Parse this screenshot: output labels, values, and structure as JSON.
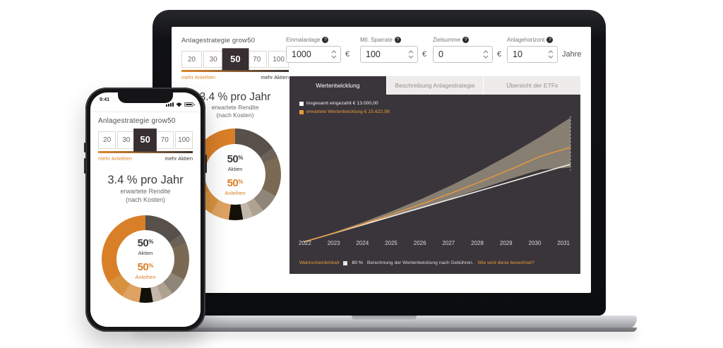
{
  "colors": {
    "accent": "#E0872F",
    "accent_light": "#E89A3C",
    "dark_panel": "#3A353B",
    "band": "#8B8276"
  },
  "strategy": {
    "title": "Anlagestrategie grow50",
    "options": [
      "20",
      "30",
      "50",
      "70",
      "100"
    ],
    "selected": "50",
    "left_label": "mehr Anleihen",
    "right_label": "mehr Aktien",
    "rate": "3.4 % pro Jahr",
    "rate_sub1": "erwartete Rendite",
    "rate_sub2": "(nach Kosten)"
  },
  "phone": {
    "status_time": "9:41"
  },
  "inputs": [
    {
      "label": "Einmalanlage",
      "help": "?",
      "value": "1000",
      "unit": "€"
    },
    {
      "label": "Mtl. Sparrate",
      "help": "?",
      "value": "100",
      "unit": "€"
    },
    {
      "label": "Zielsumme",
      "help": "?",
      "value": "0",
      "unit": "€"
    },
    {
      "label": "Anlagehorizont",
      "help": "?",
      "value": "10",
      "unit": "Jahre"
    }
  ],
  "tabs": [
    {
      "label": "Wertentwicklung",
      "active": true
    },
    {
      "label": "Beschreibung Anlagestrategie",
      "active": false
    },
    {
      "label": "Übersicht der ETFs",
      "active": false
    }
  ],
  "legend": [
    {
      "label": "insgesamt eingezahlt € 13.000,00",
      "color": "#FFFFFF"
    },
    {
      "label": "erwartete Wertentwicklung € 15.622,98",
      "color": "#E89A3C"
    }
  ],
  "footer": {
    "probability_label": "Wahrscheinlichkeit",
    "probability_value": "80 %",
    "note": "Berechnung der Wertentwicklung nach Gebühren.",
    "link": "Wie wird diese berechnet?"
  },
  "chart_data": [
    {
      "type": "area",
      "title": "Wertentwicklung",
      "x": [
        2022,
        2023,
        2024,
        2025,
        2026,
        2027,
        2028,
        2029,
        2030,
        2031
      ],
      "ylim": [
        0,
        20500
      ],
      "grid": false,
      "legend_position": "top-left",
      "background": "#3A353B",
      "series": [
        {
          "name": "insgesamt eingezahlt",
          "style": "line",
          "color": "#F2F0EC",
          "values": [
            1000,
            2333,
            3667,
            5000,
            6333,
            7667,
            9000,
            10333,
            11667,
            13000
          ],
          "final_label": "€ 13.000,00"
        },
        {
          "name": "erwartete Wertentwicklung",
          "style": "line",
          "color": "#E89A3C",
          "values": [
            1000,
            2350,
            3780,
            5300,
            6890,
            8580,
            10370,
            12260,
            14260,
            15623
          ],
          "final_label": "€ 15.622,98"
        },
        {
          "name": "80 % Wahrscheinlichkeit obere Grenze",
          "style": "band-upper",
          "color": "#8B8276",
          "values": [
            1000,
            2450,
            4050,
            5800,
            7700,
            9800,
            12100,
            14600,
            17300,
            20200
          ]
        },
        {
          "name": "80 % Wahrscheinlichkeit untere Grenze",
          "style": "band-lower",
          "color": "#8B8276",
          "values": [
            1000,
            2250,
            3550,
            4900,
            6300,
            7750,
            9250,
            10800,
            12200,
            12500
          ]
        }
      ]
    },
    {
      "type": "pie",
      "labels": [
        "Aktien",
        "Anleihen"
      ],
      "values": [
        50,
        50
      ],
      "center_labels": [
        {
          "value": "50",
          "unit": "%",
          "label": "Aktien"
        },
        {
          "value": "50",
          "unit": "%",
          "label": "Anleihen"
        }
      ],
      "segments": [
        {
          "from": 0,
          "to": 55,
          "color": "#57504B"
        },
        {
          "from": 55,
          "to": 68,
          "color": "#6B6158"
        },
        {
          "from": 68,
          "to": 118,
          "color": "#7B6A53"
        },
        {
          "from": 118,
          "to": 142,
          "color": "#8F8579"
        },
        {
          "from": 142,
          "to": 157,
          "color": "#AEA290"
        },
        {
          "from": 157,
          "to": 170,
          "color": "#C2B7AA"
        },
        {
          "from": 170,
          "to": 188,
          "color": "#121009"
        },
        {
          "from": 188,
          "to": 212,
          "color": "#DFA262"
        },
        {
          "from": 212,
          "to": 238,
          "color": "#D8923F"
        },
        {
          "from": 238,
          "to": 360,
          "color": "#D97F28"
        }
      ]
    }
  ]
}
